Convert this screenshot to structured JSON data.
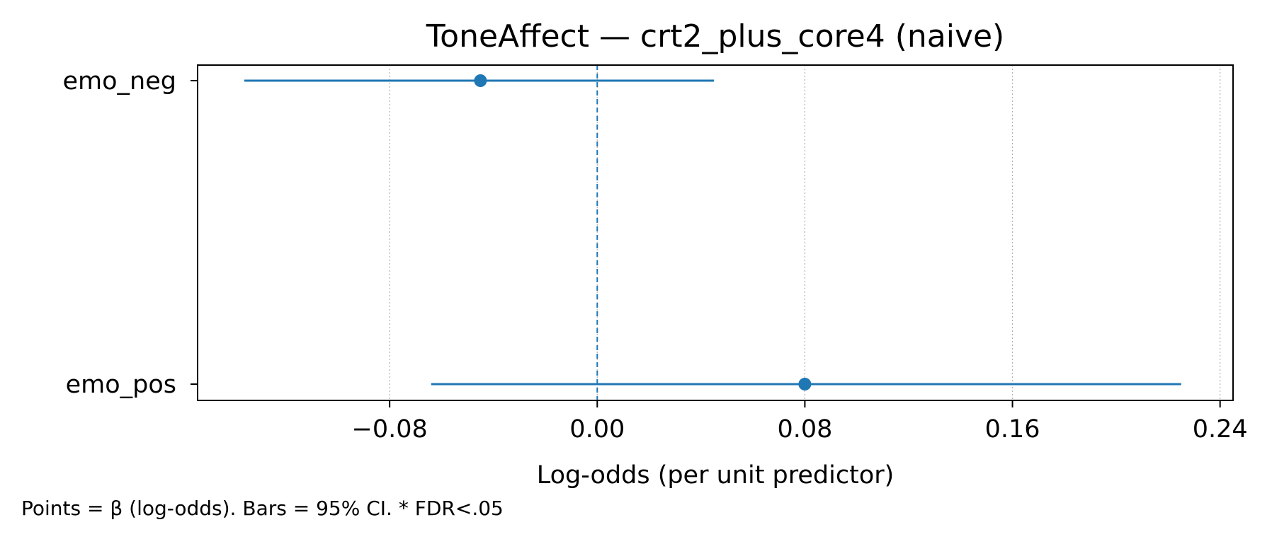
{
  "chart_data": {
    "type": "forest",
    "title": "ToneAffect — crt2_plus_core4 (naive)",
    "xlabel": "Log-odds (per unit predictor)",
    "ylabel": "",
    "xlim": [
      -0.154,
      0.245
    ],
    "xticks": [
      -0.08,
      0.0,
      0.08,
      0.16,
      0.24
    ],
    "xtick_labels": [
      "−0.08",
      "0.00",
      "0.08",
      "0.16",
      "0.24"
    ],
    "grid": "x, dotted",
    "reference_line": {
      "x": 0.0,
      "style": "dashed"
    },
    "color": "#1f77b4",
    "categories": [
      "emo_neg",
      "emo_pos"
    ],
    "estimates": [
      {
        "label": "emo_neg",
        "beta": -0.045,
        "ci_low": -0.136,
        "ci_high": 0.045
      },
      {
        "label": "emo_pos",
        "beta": 0.08,
        "ci_low": -0.064,
        "ci_high": 0.225
      }
    ],
    "footnote": "Points = β (log-odds). Bars = 95% CI. * FDR<.05"
  }
}
